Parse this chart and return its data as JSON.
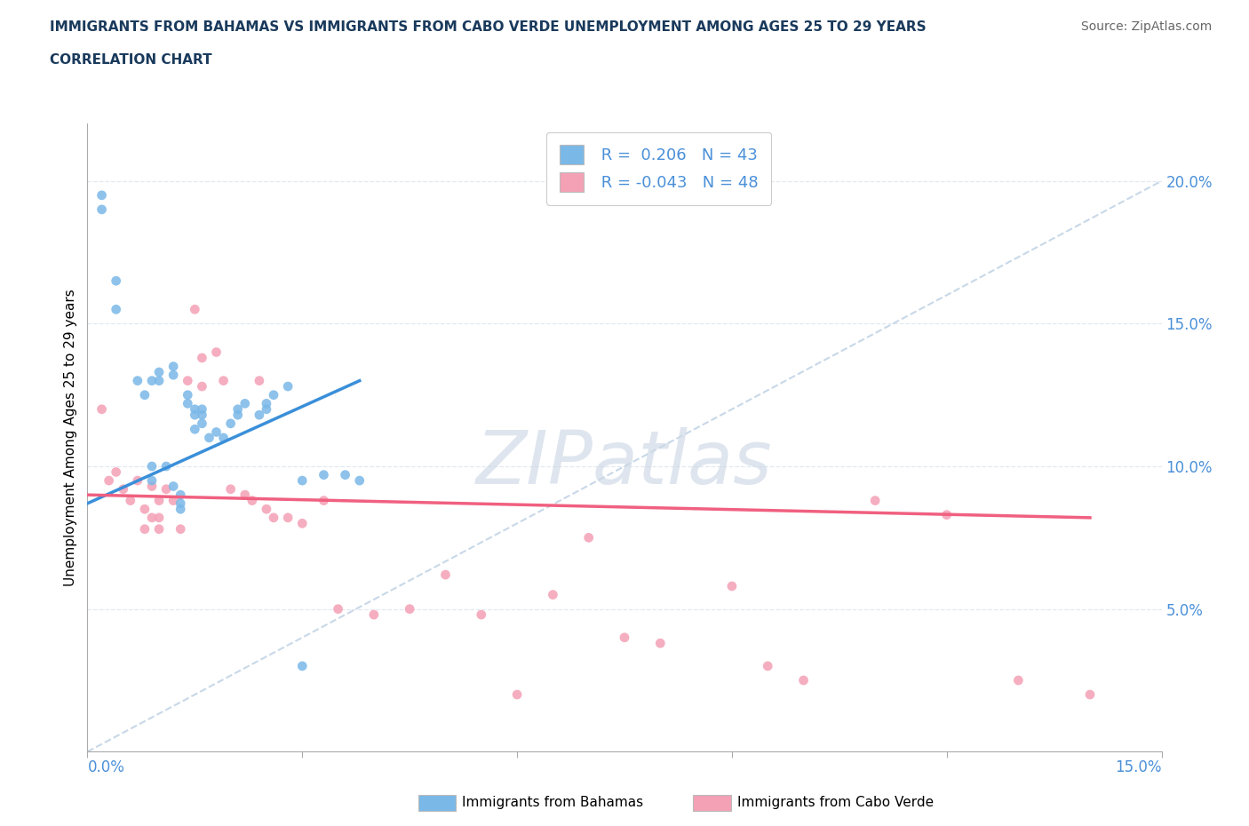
{
  "title_line1": "IMMIGRANTS FROM BAHAMAS VS IMMIGRANTS FROM CABO VERDE UNEMPLOYMENT AMONG AGES 25 TO 29 YEARS",
  "title_line2": "CORRELATION CHART",
  "source": "Source: ZipAtlas.com",
  "ylabel": "Unemployment Among Ages 25 to 29 years",
  "xlim": [
    0.0,
    0.15
  ],
  "ylim": [
    0.0,
    0.22
  ],
  "right_yticks": [
    0.05,
    0.1,
    0.15,
    0.2
  ],
  "right_yticklabels": [
    "5.0%",
    "10.0%",
    "15.0%",
    "20.0%"
  ],
  "bahamas_R": "0.206",
  "bahamas_N": "43",
  "caboverde_R": "-0.043",
  "caboverde_N": "48",
  "bahamas_color": "#7ab8e8",
  "caboverde_color": "#f4a0b5",
  "bahamas_line_color": "#3a8fd9",
  "caboverde_line_color": "#f06080",
  "ref_line_color": "#c8d8e8",
  "watermark_color": "#cdd8e5",
  "title_color": "#1a3a5c",
  "source_color": "#666666",
  "axis_label_color": "#4a90d9",
  "bahamas_x": [
    0.002,
    0.002,
    0.004,
    0.004,
    0.007,
    0.008,
    0.009,
    0.009,
    0.009,
    0.01,
    0.01,
    0.011,
    0.012,
    0.012,
    0.012,
    0.013,
    0.013,
    0.013,
    0.014,
    0.014,
    0.015,
    0.015,
    0.015,
    0.016,
    0.016,
    0.016,
    0.017,
    0.018,
    0.019,
    0.02,
    0.021,
    0.021,
    0.022,
    0.024,
    0.025,
    0.025,
    0.026,
    0.028,
    0.03,
    0.03,
    0.033,
    0.036,
    0.038
  ],
  "bahamas_y": [
    0.195,
    0.19,
    0.165,
    0.155,
    0.13,
    0.125,
    0.13,
    0.1,
    0.095,
    0.133,
    0.13,
    0.1,
    0.093,
    0.135,
    0.132,
    0.09,
    0.087,
    0.085,
    0.125,
    0.122,
    0.12,
    0.118,
    0.113,
    0.12,
    0.118,
    0.115,
    0.11,
    0.112,
    0.11,
    0.115,
    0.118,
    0.12,
    0.122,
    0.118,
    0.12,
    0.122,
    0.125,
    0.128,
    0.095,
    0.03,
    0.097,
    0.097,
    0.095
  ],
  "caboverde_x": [
    0.002,
    0.003,
    0.004,
    0.005,
    0.006,
    0.007,
    0.008,
    0.008,
    0.009,
    0.009,
    0.01,
    0.01,
    0.01,
    0.011,
    0.012,
    0.013,
    0.014,
    0.015,
    0.016,
    0.016,
    0.018,
    0.019,
    0.02,
    0.022,
    0.023,
    0.024,
    0.025,
    0.026,
    0.028,
    0.03,
    0.033,
    0.035,
    0.04,
    0.045,
    0.05,
    0.055,
    0.06,
    0.065,
    0.07,
    0.075,
    0.08,
    0.09,
    0.095,
    0.1,
    0.11,
    0.12,
    0.13,
    0.14
  ],
  "caboverde_y": [
    0.12,
    0.095,
    0.098,
    0.092,
    0.088,
    0.095,
    0.085,
    0.078,
    0.093,
    0.082,
    0.088,
    0.082,
    0.078,
    0.092,
    0.088,
    0.078,
    0.13,
    0.155,
    0.138,
    0.128,
    0.14,
    0.13,
    0.092,
    0.09,
    0.088,
    0.13,
    0.085,
    0.082,
    0.082,
    0.08,
    0.088,
    0.05,
    0.048,
    0.05,
    0.062,
    0.048,
    0.02,
    0.055,
    0.075,
    0.04,
    0.038,
    0.058,
    0.03,
    0.025,
    0.088,
    0.083,
    0.025,
    0.02
  ],
  "blue_line_x": [
    0.0,
    0.038
  ],
  "blue_line_y": [
    0.087,
    0.13
  ],
  "pink_line_x": [
    0.0,
    0.14
  ],
  "pink_line_y": [
    0.09,
    0.082
  ]
}
